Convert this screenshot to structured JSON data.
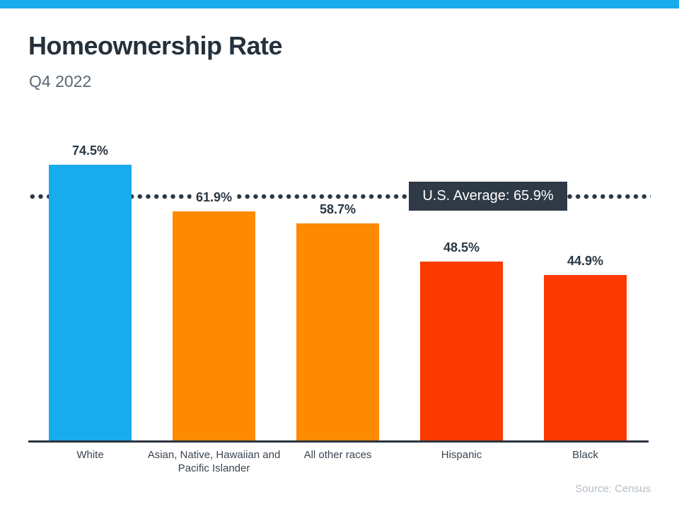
{
  "page": {
    "title": "Homeownership Rate",
    "subtitle": "Q4 2022",
    "source": "Source: Census",
    "accent_strip_color": "#18ACEC"
  },
  "chart_data": {
    "type": "bar",
    "title": "Homeownership Rate",
    "subtitle": "Q4 2022",
    "categories": [
      "White",
      "Asian, Native, Hawaiian and Pacific Islander",
      "All other races",
      "Hispanic",
      "Black"
    ],
    "values": [
      74.5,
      61.9,
      58.7,
      48.5,
      44.9
    ],
    "value_labels": [
      "74.5%",
      "61.9%",
      "58.7%",
      "48.5%",
      "44.9%"
    ],
    "bar_colors": [
      "#18ACEC",
      "#FD8A00",
      "#FD8A00",
      "#FB3A00",
      "#FB3A00"
    ],
    "average_line": {
      "value": 65.9,
      "label": "U.S. Average: 65.9%",
      "style": "dotted",
      "line_color": "#2B3844",
      "label_bg": "#2E3A46",
      "label_color": "#FFFFFF"
    },
    "ylim": [
      0,
      100
    ],
    "ylabel": "",
    "xlabel": "",
    "grid": false,
    "legend": false,
    "axis_color": "#2B3440",
    "source": "Source: Census"
  }
}
